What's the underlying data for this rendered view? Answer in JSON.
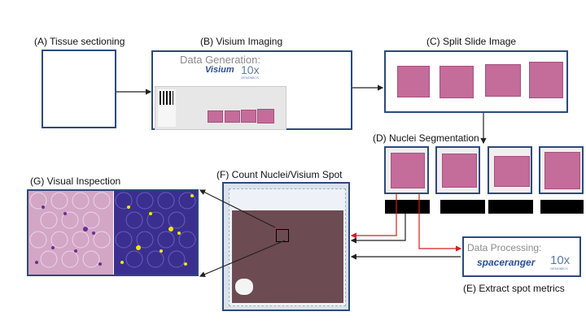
{
  "panels": {
    "a": {
      "label": "(A) Tissue sectioning"
    },
    "b": {
      "label": "(B) Visium Imaging",
      "caption": "Data Generation:",
      "brand": "Visium",
      "logo_main": "10x",
      "logo_sub": "GENOMICS"
    },
    "c": {
      "label": "(C) Split Slide Image"
    },
    "d": {
      "label": "(D) Nuclei Segmentation"
    },
    "e": {
      "label": "(E) Extract spot metrics",
      "caption": "Data Processing:",
      "tool": "spaceranger",
      "logo_main": "10x",
      "logo_sub": "GENOMICS"
    },
    "f": {
      "label": "(F) Count Nuclei/Visium Spot"
    },
    "g": {
      "label": "(G) Visual Inspection"
    }
  },
  "colors": {
    "border": "#2c4a7a",
    "tissue": "#c46c9a",
    "arrow_red": "#d42020",
    "arrow_dark": "#222222",
    "fluor_bg": "#3a2f8f",
    "fluor_spot": "#f2e600"
  }
}
